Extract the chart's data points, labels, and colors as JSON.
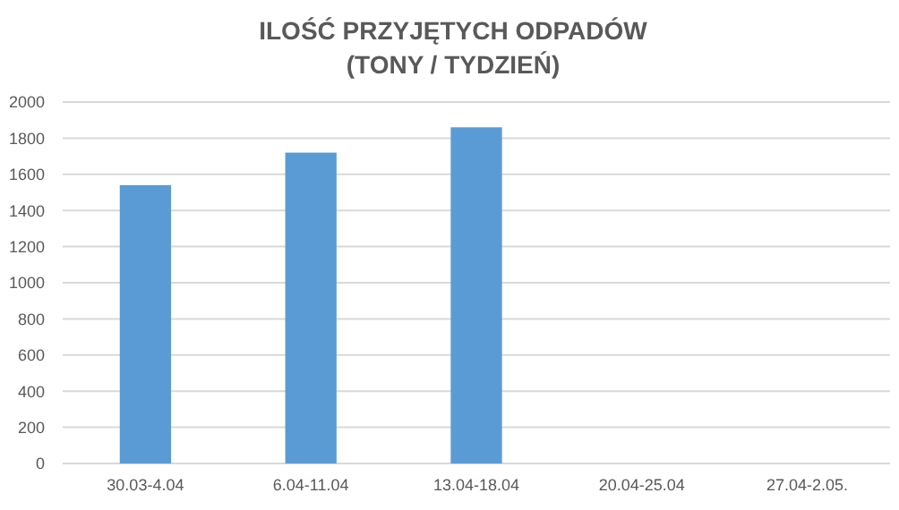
{
  "chart_data": {
    "type": "bar",
    "title": "ILOŚĆ PRZYJĘTYCH ODPADÓW\n(TONY / TYDZIEŃ)",
    "categories": [
      "30.03-4.04",
      "6.04-11.04",
      "13.04-18.04",
      "20.04-25.04",
      "27.04-2.05."
    ],
    "values": [
      1540,
      1720,
      1860,
      null,
      null
    ],
    "color": "#5b9bd5",
    "ylim": [
      0,
      2000
    ],
    "yticks": [
      0,
      200,
      400,
      600,
      800,
      1000,
      1200,
      1400,
      1600,
      1800,
      2000
    ],
    "grid": "y"
  }
}
